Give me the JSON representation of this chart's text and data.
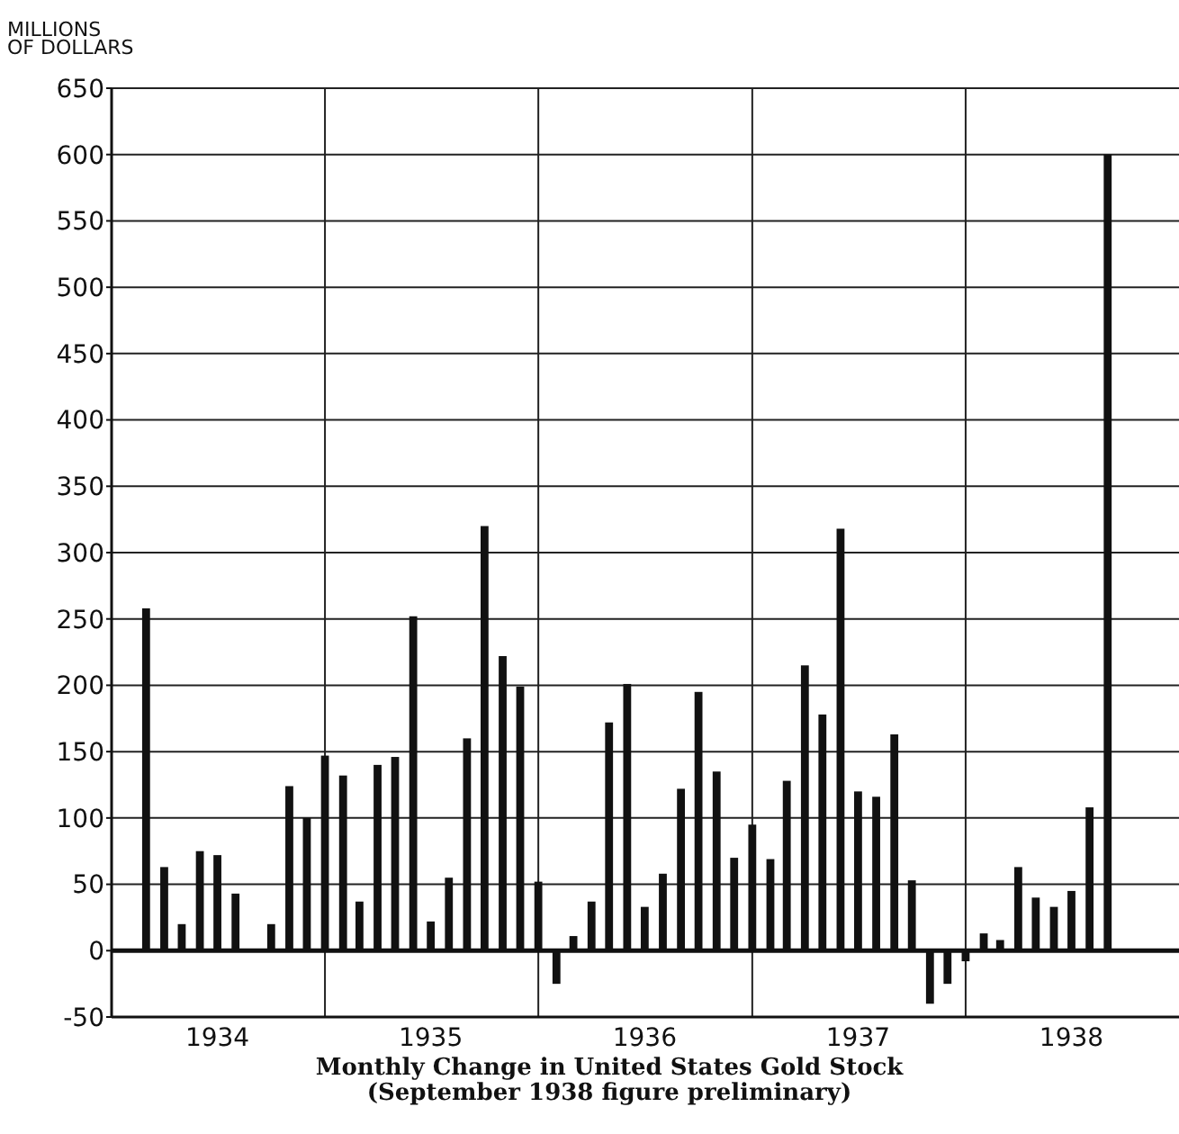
{
  "chart_data": {
    "type": "bar",
    "title": "Monthly Change in United States Gold Stock",
    "subtitle": "(September 1938 figure preliminary)",
    "ylabel": "MILLIONS\nOF DOLLARS",
    "x": [
      "1934-03",
      "1934-04",
      "1934-05",
      "1934-06",
      "1934-07",
      "1934-08",
      "1934-09",
      "1934-10",
      "1934-11",
      "1934-12",
      "1935-01",
      "1935-02",
      "1935-03",
      "1935-04",
      "1935-05",
      "1935-06",
      "1935-07",
      "1935-08",
      "1935-09",
      "1935-10",
      "1935-11",
      "1935-12",
      "1936-01",
      "1936-02",
      "1936-03",
      "1936-04",
      "1936-05",
      "1936-06",
      "1936-07",
      "1936-08",
      "1936-09",
      "1936-10",
      "1936-11",
      "1936-12",
      "1937-01",
      "1937-02",
      "1937-03",
      "1937-04",
      "1937-05",
      "1937-06",
      "1937-07",
      "1937-08",
      "1937-09",
      "1937-10",
      "1937-11",
      "1937-12",
      "1938-01",
      "1938-02",
      "1938-03",
      "1938-04",
      "1938-05",
      "1938-06",
      "1938-07",
      "1938-08",
      "1938-09"
    ],
    "values": [
      258,
      63,
      20,
      75,
      72,
      43,
      0,
      20,
      124,
      100,
      147,
      132,
      37,
      140,
      146,
      252,
      22,
      55,
      160,
      320,
      222,
      199,
      52,
      -25,
      11,
      37,
      172,
      201,
      33,
      58,
      122,
      195,
      135,
      70,
      95,
      69,
      128,
      215,
      178,
      318,
      120,
      116,
      163,
      53,
      -40,
      -25,
      -8,
      13,
      8,
      63,
      40,
      33,
      45,
      108,
      600
    ],
    "color": "#111111",
    "xlim": [
      "1934-01",
      "1939-01"
    ],
    "xticks": [
      {
        "value": "1934-07",
        "label": "1934"
      },
      {
        "value": "1935-01",
        "label": null
      },
      {
        "value": "1935-07",
        "label": "1935"
      },
      {
        "value": "1936-01",
        "label": null
      },
      {
        "value": "1936-07",
        "label": "1936"
      },
      {
        "value": "1937-01",
        "label": null
      },
      {
        "value": "1937-07",
        "label": "1937"
      },
      {
        "value": "1938-01",
        "label": null
      },
      {
        "value": "1938-07",
        "label": "1938"
      }
    ],
    "ylim": [
      -50,
      650
    ],
    "yticks": [
      -50,
      0,
      50,
      100,
      150,
      200,
      250,
      300,
      350,
      400,
      450,
      500,
      550,
      600,
      650
    ],
    "grid": true
  }
}
